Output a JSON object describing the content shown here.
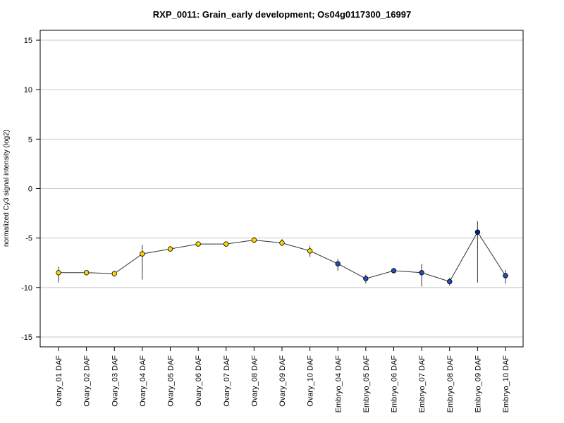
{
  "chart_data": {
    "type": "line",
    "title": "RXP_0011: Grain_early development; Os04g0117300_16997",
    "ylabel": "normalized Cy3 signal intensity (log2)",
    "xlabel": "",
    "ylim": [
      -16,
      16
    ],
    "yticks": [
      -15,
      -10,
      -5,
      0,
      5,
      10,
      15
    ],
    "grid": true,
    "categories": [
      "Ovary_01 DAF",
      "Ovary_02 DAF",
      "Ovary_03 DAF",
      "Ovary_04 DAF",
      "Ovary_05 DAF",
      "Ovary_06 DAF",
      "Ovary_07 DAF",
      "Ovary_08 DAF",
      "Ovary_09 DAF",
      "Ovary_10 DAF",
      "Embryo_04 DAF",
      "Embryo_05 DAF",
      "Embryo_06 DAF",
      "Embryo_07 DAF",
      "Embryo_08 DAF",
      "Embryo_09 DAF",
      "Embryo_10 DAF"
    ],
    "values": [
      -8.5,
      -8.5,
      -8.6,
      -6.6,
      -6.1,
      -5.6,
      -5.6,
      -5.2,
      -5.5,
      -6.3,
      -7.6,
      -9.1,
      -8.3,
      -8.5,
      -9.4,
      -4.4,
      -8.8
    ],
    "err_low": [
      -9.5,
      -8.7,
      -8.9,
      -9.2,
      -6.3,
      -5.7,
      -5.8,
      -5.5,
      -5.8,
      -6.9,
      -8.3,
      -9.6,
      -8.5,
      -9.9,
      -9.8,
      -9.5,
      -9.6
    ],
    "err_high": [
      -7.9,
      -8.3,
      -8.3,
      -5.7,
      -5.9,
      -5.5,
      -5.4,
      -4.9,
      -5.1,
      -5.8,
      -7.1,
      -8.7,
      -8.1,
      -7.6,
      -9.0,
      -3.3,
      -8.2
    ],
    "point_colors": [
      "#FFD700",
      "#FFD700",
      "#FFD700",
      "#FFD700",
      "#FFD700",
      "#FFD700",
      "#FFD700",
      "#FFD700",
      "#FFD700",
      "#FFD700",
      "#1E4FB0",
      "#1E4FB0",
      "#1E4FB0",
      "#1E4FB0",
      "#1E4FB0",
      "#0A1B8A",
      "#1E4FB0"
    ],
    "colors": {
      "line": "#333333",
      "grid": "#c8c8c8",
      "axis": "#000000"
    }
  }
}
